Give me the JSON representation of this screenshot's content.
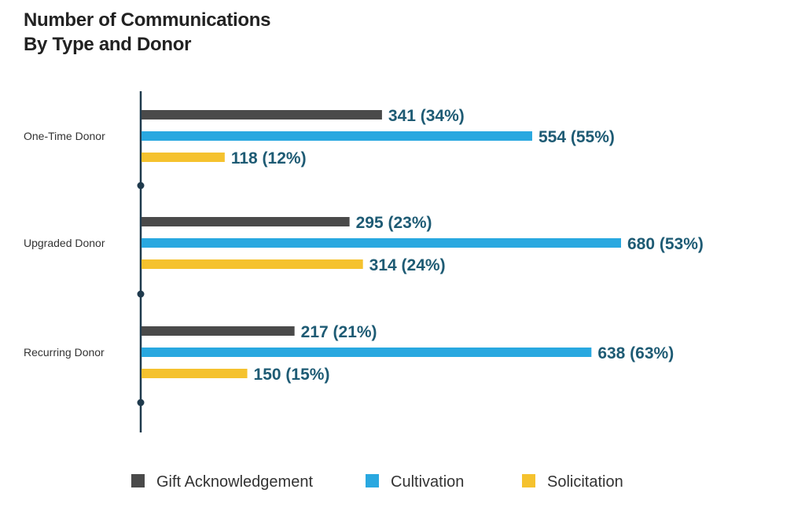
{
  "chart_data": {
    "type": "bar",
    "orientation": "horizontal",
    "title_lines": [
      "Number of Communications",
      "By Type and Donor"
    ],
    "categories": [
      "One-Time Donor",
      "Upgraded Donor",
      "Recurring Donor"
    ],
    "series": [
      {
        "name": "Gift Acknowledgement",
        "color": "#4a4a4a",
        "values": [
          341,
          295,
          217
        ],
        "labels": [
          "341 (34%)",
          "295 (23%)",
          "217 (21%)"
        ]
      },
      {
        "name": "Cultivation",
        "color": "#29a8e0",
        "values": [
          554,
          680,
          638
        ],
        "labels": [
          "554 (55%)",
          "680 (53%)",
          "638 (63%)"
        ]
      },
      {
        "name": "Solicitation",
        "color": "#f5c22e",
        "values": [
          118,
          314,
          150
        ],
        "labels": [
          "118 (12%)",
          "314 (24%)",
          "150 (15%)"
        ]
      }
    ],
    "xlim": [
      0,
      680
    ],
    "label_color": "#1e5b74",
    "axis_color": "#1f3a4d",
    "legend_position": "bottom",
    "grid": false
  }
}
